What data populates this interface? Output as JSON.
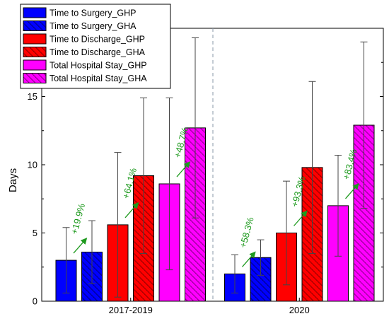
{
  "chart_data": {
    "type": "bar",
    "categories": [
      "2017-2019",
      "2020"
    ],
    "ylabel": "Days",
    "xlabel": "",
    "ylim": [
      0,
      20
    ],
    "yticks": [
      0,
      5,
      10,
      15
    ],
    "grid": false,
    "legend_position": "top-left",
    "series": [
      {
        "name": "Time to Surgery_GHP",
        "values": [
          3.0,
          2.0
        ],
        "error": [
          2.4,
          1.4
        ],
        "color": "#0000ff",
        "hatched": false
      },
      {
        "name": "Time to Surgery_GHA",
        "values": [
          3.6,
          3.2
        ],
        "error": [
          2.3,
          1.3
        ],
        "color": "#0000ff",
        "hatched": true
      },
      {
        "name": "Time to Discharge_GHP",
        "values": [
          5.6,
          5.0
        ],
        "error": [
          5.3,
          3.8
        ],
        "color": "#ff0000",
        "hatched": false
      },
      {
        "name": "Time to Discharge_GHA",
        "values": [
          9.2,
          9.8
        ],
        "error": [
          5.7,
          6.3
        ],
        "color": "#ff0000",
        "hatched": true
      },
      {
        "name": "Total Hospital Stay_GHP",
        "values": [
          8.6,
          7.0
        ],
        "error": [
          6.3,
          3.7
        ],
        "color": "#ff00ff",
        "hatched": false
      },
      {
        "name": "Total Hospital Stay_GHA",
        "values": [
          12.7,
          12.9
        ],
        "error": [
          6.6,
          6.1
        ],
        "color": "#ff00ff",
        "hatched": true
      }
    ],
    "annotations": [
      {
        "text": "+19.9%",
        "group": 0,
        "pair": 0
      },
      {
        "text": "+64.1%",
        "group": 0,
        "pair": 1
      },
      {
        "text": "+48.7%",
        "group": 0,
        "pair": 2
      },
      {
        "text": "+58.3%",
        "group": 1,
        "pair": 0
      },
      {
        "text": "+93.3%",
        "group": 1,
        "pair": 1
      },
      {
        "text": "+83.4%",
        "group": 1,
        "pair": 2
      }
    ],
    "colors": {
      "annotation": "#1e9a1e",
      "divider": "#8899aa"
    }
  }
}
